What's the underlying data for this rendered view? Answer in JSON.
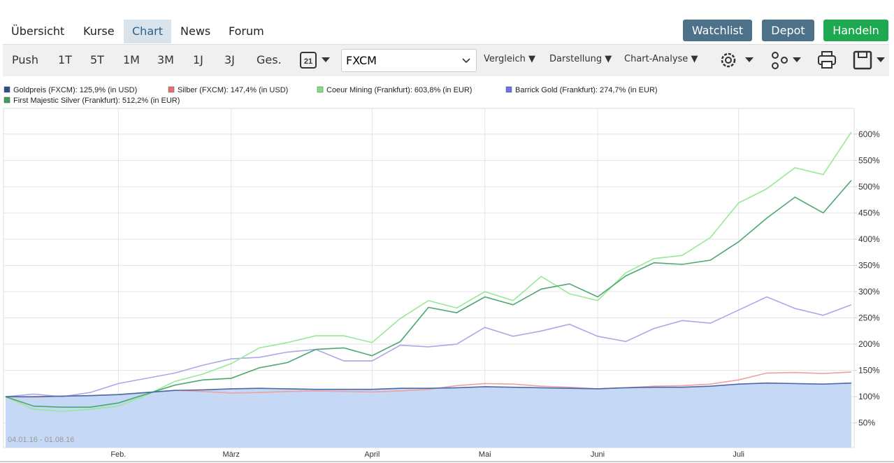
{
  "nav": {
    "tabs": [
      "Übersicht",
      "Kurse",
      "Chart",
      "News",
      "Forum"
    ],
    "buttons": [
      "Watchlist",
      "Depot",
      "Handeln"
    ]
  },
  "toolbar": {
    "periods": [
      "Push",
      "1T",
      "5T",
      "1M",
      "3M",
      "1J",
      "3J",
      "Ges."
    ],
    "calendar_day": "21",
    "source": "FXCM",
    "menus": [
      "Vergleich",
      "Darstellung",
      "Chart-Analyse"
    ]
  },
  "chart_data": {
    "type": "line",
    "date_range": "04.01.16 - 01.08.16",
    "categories": [
      null,
      null,
      null,
      null,
      "Feb.",
      null,
      null,
      null,
      "März",
      null,
      null,
      null,
      null,
      "April",
      null,
      null,
      null,
      "Mai",
      null,
      null,
      null,
      "Juni",
      null,
      null,
      null,
      null,
      "Juli",
      null,
      null,
      null,
      null
    ],
    "ylim": [
      3,
      649
    ],
    "yticks": [
      {
        "value": 50,
        "label": "50%"
      },
      {
        "value": 100,
        "label": "100%"
      },
      {
        "value": 150,
        "label": "150%"
      },
      {
        "value": 200,
        "label": "200%"
      },
      {
        "value": 250,
        "label": "250%"
      },
      {
        "value": 300,
        "label": "300%"
      },
      {
        "value": 350,
        "label": "350%"
      },
      {
        "value": 400,
        "label": "400%"
      },
      {
        "value": 450,
        "label": "450%"
      },
      {
        "value": 500,
        "label": "500%"
      },
      {
        "value": 550,
        "label": "550%"
      },
      {
        "value": 600,
        "label": "600%"
      }
    ],
    "grid": true,
    "series": [
      {
        "name": "Goldpreis (FXCM): 125,9% (in USD)",
        "color": "#2e4f8c",
        "line_color": "#4a6aa8",
        "fill": "#c5d8f5",
        "values": [
          100,
          100,
          101,
          102,
          104,
          108,
          112,
          113,
          115,
          116,
          115,
          114,
          114,
          114,
          116,
          116,
          117,
          119,
          118,
          117,
          116,
          115,
          117,
          118,
          118,
          120,
          124,
          126,
          125,
          124,
          126
        ]
      },
      {
        "name": "Silber (FXCM): 147,4% (in USD)",
        "color": "#e87070",
        "line_color": "#f0a0a0",
        "values": [
          100,
          99,
          101,
          102,
          104,
          108,
          112,
          110,
          107,
          108,
          110,
          111,
          110,
          109,
          111,
          114,
          121,
          125,
          124,
          120,
          118,
          115,
          117,
          120,
          121,
          124,
          132,
          145,
          146,
          144,
          147
        ]
      },
      {
        "name": "Coeur Mining (Frankfurt): 603,8% (in EUR)",
        "color": "#7ee07e",
        "line_color": "#98e898",
        "values": [
          100,
          76,
          72,
          76,
          82,
          103,
          129,
          143,
          163,
          193,
          203,
          216,
          216,
          203,
          249,
          283,
          269,
          300,
          283,
          329,
          296,
          283,
          336,
          363,
          369,
          403,
          469,
          496,
          536,
          523,
          604
        ]
      },
      {
        "name": "Barrick Gold (Frankfurt): 274,7% (in EUR)",
        "color": "#7070e0",
        "line_color": "#a9a9e8",
        "values": [
          100,
          105,
          100,
          108,
          125,
          135,
          145,
          160,
          172,
          175,
          185,
          190,
          168,
          168,
          198,
          195,
          200,
          232,
          215,
          225,
          238,
          215,
          205,
          230,
          245,
          240,
          265,
          290,
          268,
          255,
          275
        ]
      },
      {
        "name": "First Majestic Silver (Frankfurt): 512,2% (in EUR)",
        "color": "#3aa060",
        "line_color": "#4aa870",
        "values": [
          100,
          82,
          80,
          80,
          88,
          105,
          122,
          132,
          135,
          155,
          165,
          190,
          193,
          178,
          205,
          270,
          260,
          290,
          275,
          305,
          315,
          290,
          330,
          355,
          352,
          360,
          395,
          440,
          480,
          450,
          512
        ]
      }
    ]
  }
}
